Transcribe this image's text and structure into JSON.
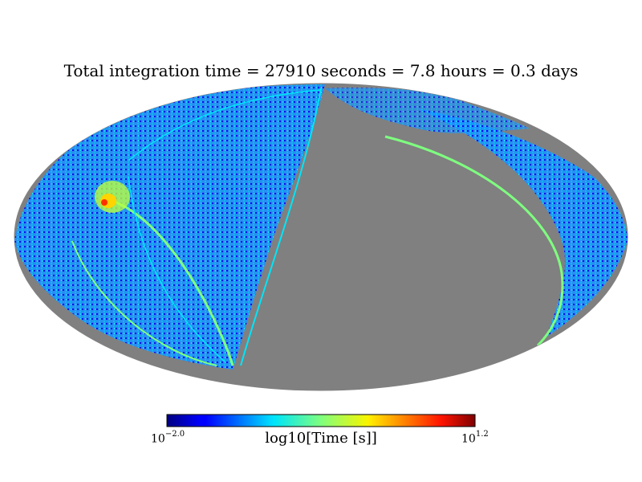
{
  "chart_data": {
    "type": "heatmap",
    "projection": "mollweide",
    "title": "Total integration time = 27910 seconds = 7.8 hours = 0.3 days",
    "colorbar": {
      "label": "log10[Time [s]]",
      "min_base": "10",
      "min_exp": "−2.0",
      "max_base": "10",
      "max_exp": "1.2",
      "vmin": -2.0,
      "vmax": 1.2,
      "colormap": "jet"
    },
    "missing_color": "#808080"
  }
}
